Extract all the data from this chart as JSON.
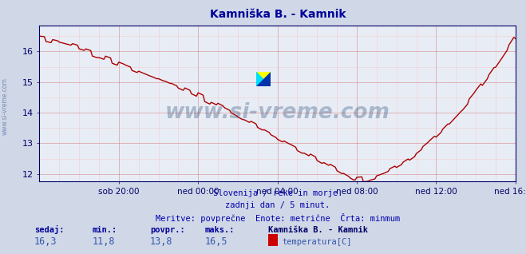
{
  "title": "Kamniška B. - Kamnik",
  "title_color": "#000099",
  "bg_color": "#d0d8e8",
  "plot_bg_color": "#e8edf5",
  "line_color": "#aa0000",
  "line_width": 1.0,
  "ylabel_color": "#000066",
  "xlabel_color": "#000066",
  "ylim": [
    11.75,
    16.85
  ],
  "yticks": [
    12,
    13,
    14,
    15,
    16
  ],
  "x_labels": [
    "sob 20:00",
    "ned 00:00",
    "ned 04:00",
    "ned 08:00",
    "ned 12:00",
    "ned 16:00"
  ],
  "footer_line1": "Slovenija / reke in morje.",
  "footer_line2": "zadnji dan / 5 minut.",
  "footer_line3": "Meritve: povprečne  Enote: metrične  Črta: minmum",
  "footer_color": "#0000aa",
  "stat_label_color": "#000099",
  "stat_value_color": "#3355aa",
  "legend_title_color": "#000066",
  "legend_label": "temperatura[C]",
  "legend_rect_color": "#cc0000",
  "watermark": "www.si-vreme.com",
  "watermark_color": "#1a3a6a",
  "sidebar_text": "www.si-vreme.com",
  "sedaj": "16,3",
  "min_val": "11,8",
  "povpr": "13,8",
  "maks": "16,5",
  "n_points": 289,
  "x_tick_positions": [
    48,
    96,
    144,
    192,
    240,
    288
  ]
}
